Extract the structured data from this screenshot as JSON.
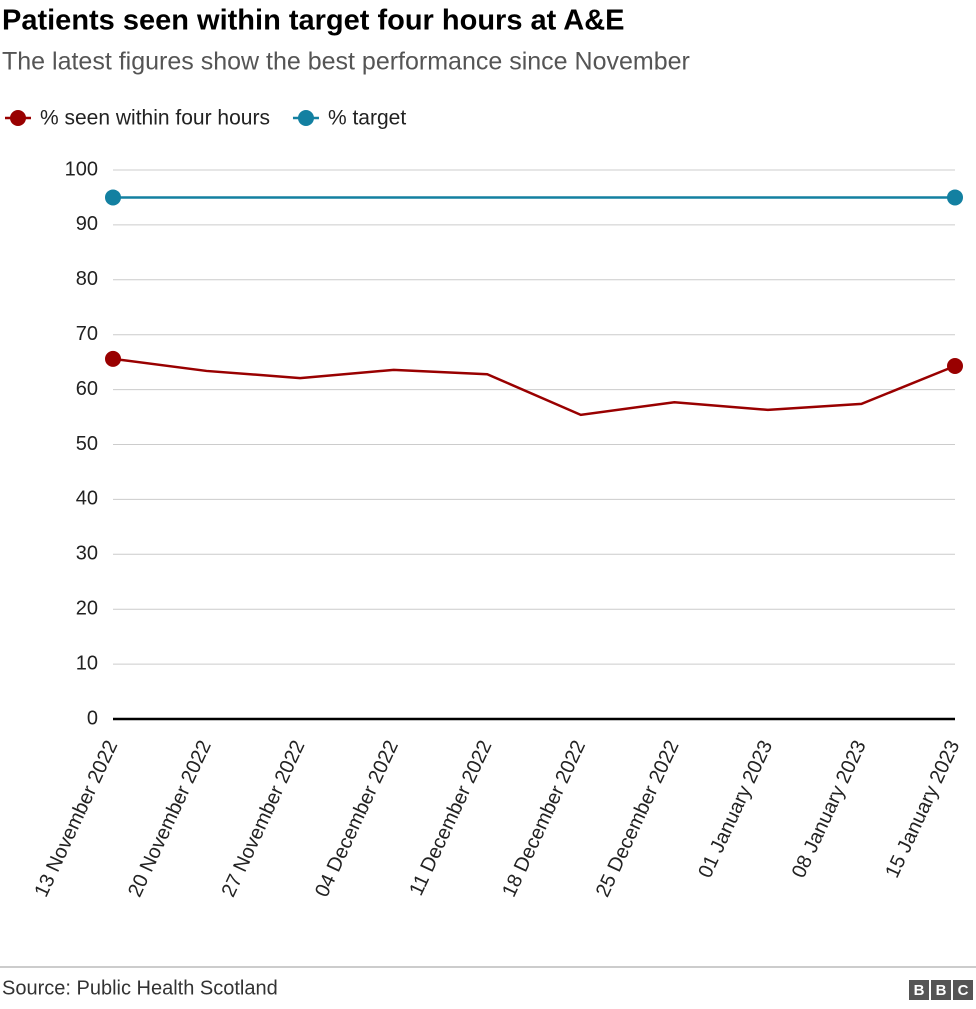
{
  "chart_data": {
    "type": "line",
    "title": "Patients seen within target four hours at A&E",
    "subtitle": "The latest figures show the best performance since November",
    "categories": [
      "13 November 2022",
      "20 November 2022",
      "27 November 2022",
      "04 December 2022",
      "11 December 2022",
      "18 December 2022",
      "25 December 2022",
      "01 January 2023",
      "08 January 2023",
      "15 January 2023"
    ],
    "series": [
      {
        "name": "% seen within four hours",
        "color": "#990000",
        "values": [
          65.6,
          63.4,
          62.1,
          63.6,
          62.8,
          55.4,
          57.7,
          56.3,
          57.4,
          64.3
        ]
      },
      {
        "name": "% target",
        "color": "#1380a1",
        "values": [
          95,
          95,
          95,
          95,
          95,
          95,
          95,
          95,
          95,
          95
        ]
      }
    ],
    "ylim": [
      0,
      100
    ],
    "yticks": [
      0,
      10,
      20,
      30,
      40,
      50,
      60,
      70,
      80,
      90,
      100
    ],
    "grid": true,
    "legend": "top-left",
    "source": "Source: Public Health Scotland",
    "logo": "BBC"
  }
}
